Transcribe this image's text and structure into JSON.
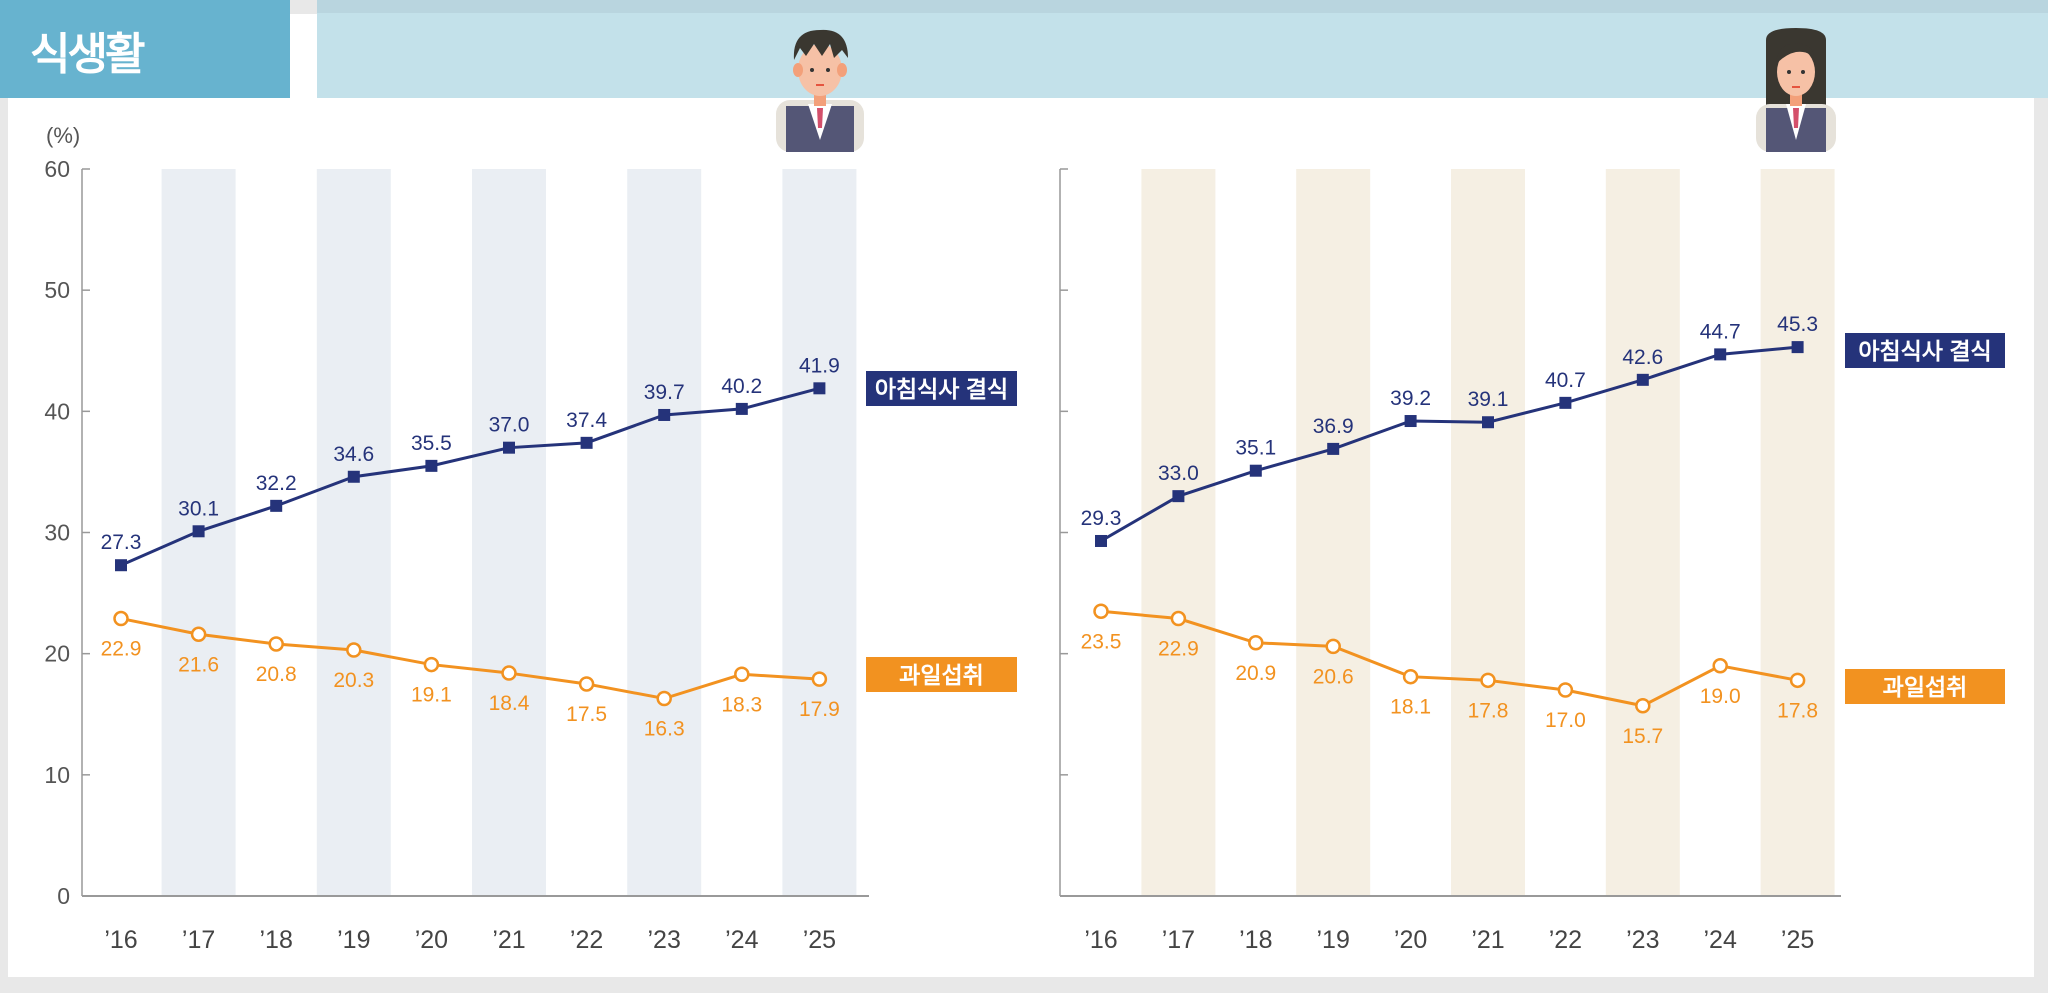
{
  "header": {
    "title": "식생활"
  },
  "colors": {
    "breakfast": "#25337a",
    "fruit": "#f29220",
    "header": "#67b3cf",
    "boy_band": "#eaeef3",
    "girl_band": "#f5efe3"
  },
  "chart_data": [
    {
      "type": "line",
      "panel": "boy",
      "icon": "boy-student-avatar",
      "ylabel": "(%)",
      "ylim": [
        0,
        60
      ],
      "yticks": [
        "0",
        "10",
        "20",
        "30",
        "40",
        "50",
        "60"
      ],
      "categories": [
        "’16",
        "’17",
        "’18",
        "’19",
        "’20",
        "’21",
        "’22",
        "’23",
        "’24",
        "’25"
      ],
      "series": [
        {
          "name": "아침식사 결식",
          "marker": "square",
          "values": [
            27.3,
            30.1,
            32.2,
            34.6,
            35.5,
            37.0,
            37.4,
            39.7,
            40.2,
            41.9
          ],
          "labels": [
            "27.3",
            "30.1",
            "32.2",
            "34.6",
            "35.5",
            "37.0",
            "37.4",
            "39.7",
            "40.2",
            "41.9"
          ]
        },
        {
          "name": "과일섭취",
          "marker": "open-circle",
          "values": [
            22.9,
            21.6,
            20.8,
            20.3,
            19.1,
            18.4,
            17.5,
            16.3,
            18.3,
            17.9
          ],
          "labels": [
            "22.9",
            "21.6",
            "20.8",
            "20.3",
            "19.1",
            "18.4",
            "17.5",
            "16.3",
            "18.3",
            "17.9"
          ]
        }
      ]
    },
    {
      "type": "line",
      "panel": "girl",
      "icon": "girl-student-avatar",
      "ylim": [
        0,
        60
      ],
      "categories": [
        "’16",
        "’17",
        "’18",
        "’19",
        "’20",
        "’21",
        "’22",
        "’23",
        "’24",
        "’25"
      ],
      "series": [
        {
          "name": "아침식사 결식",
          "marker": "square",
          "values": [
            29.3,
            33.0,
            35.1,
            36.9,
            39.2,
            39.1,
            40.7,
            42.6,
            44.7,
            45.3
          ],
          "labels": [
            "29.3",
            "33.0",
            "35.1",
            "36.9",
            "39.2",
            "39.1",
            "40.7",
            "42.6",
            "44.7",
            "45.3"
          ]
        },
        {
          "name": "과일섭취",
          "marker": "open-circle",
          "values": [
            23.5,
            22.9,
            20.9,
            20.6,
            18.1,
            17.8,
            17.0,
            15.7,
            19.0,
            17.8
          ],
          "labels": [
            "23.5",
            "22.9",
            "20.9",
            "20.6",
            "18.1",
            "17.8",
            "17.0",
            "15.7",
            "19.0",
            "17.8"
          ]
        }
      ]
    }
  ]
}
